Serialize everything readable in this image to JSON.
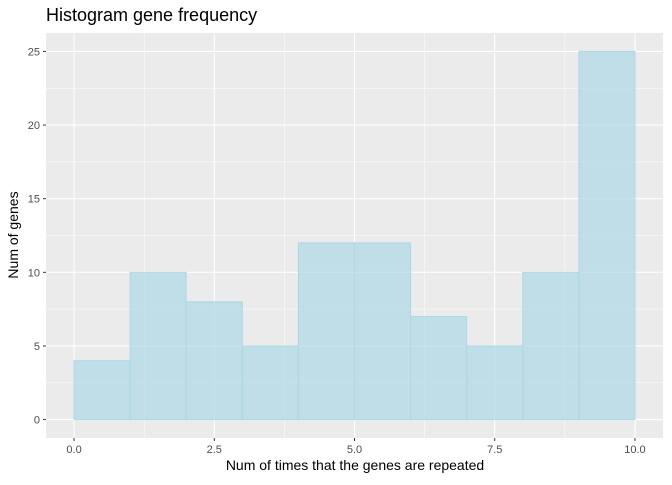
{
  "colors": {
    "panel_background": "#ebebeb",
    "grid_major": "#ffffff",
    "bar_fill": "#add8e6",
    "bar_stroke": "#add8e6",
    "tick_text": "#4d4d4d",
    "tick_mark": "#333333"
  },
  "chart_data": {
    "type": "bar",
    "subtype": "histogram",
    "title": "Histogram gene frequency",
    "xlabel": "Num of times that the genes are repeated",
    "ylabel": "Num of genes",
    "bins": [
      {
        "start": 0,
        "end": 1,
        "count": 4
      },
      {
        "start": 1,
        "end": 2,
        "count": 10
      },
      {
        "start": 2,
        "end": 3,
        "count": 8
      },
      {
        "start": 3,
        "end": 4,
        "count": 5
      },
      {
        "start": 4,
        "end": 5,
        "count": 12
      },
      {
        "start": 5,
        "end": 6,
        "count": 12
      },
      {
        "start": 6,
        "end": 7,
        "count": 7
      },
      {
        "start": 7,
        "end": 8,
        "count": 5
      },
      {
        "start": 8,
        "end": 9,
        "count": 10
      },
      {
        "start": 9,
        "end": 10,
        "count": 25
      }
    ],
    "xlim": [
      -0.5,
      10.5
    ],
    "ylim": [
      -1.25,
      26.25
    ],
    "x_ticks": [
      0,
      2.5,
      5,
      7.5,
      10
    ],
    "x_tick_labels": [
      "0.0",
      "2.5",
      "5.0",
      "7.5",
      "10.0"
    ],
    "y_ticks": [
      0,
      5,
      10,
      15,
      20,
      25
    ],
    "y_tick_labels": [
      "0",
      "5",
      "10",
      "15",
      "20",
      "25"
    ],
    "grid": true,
    "legend": "none"
  }
}
